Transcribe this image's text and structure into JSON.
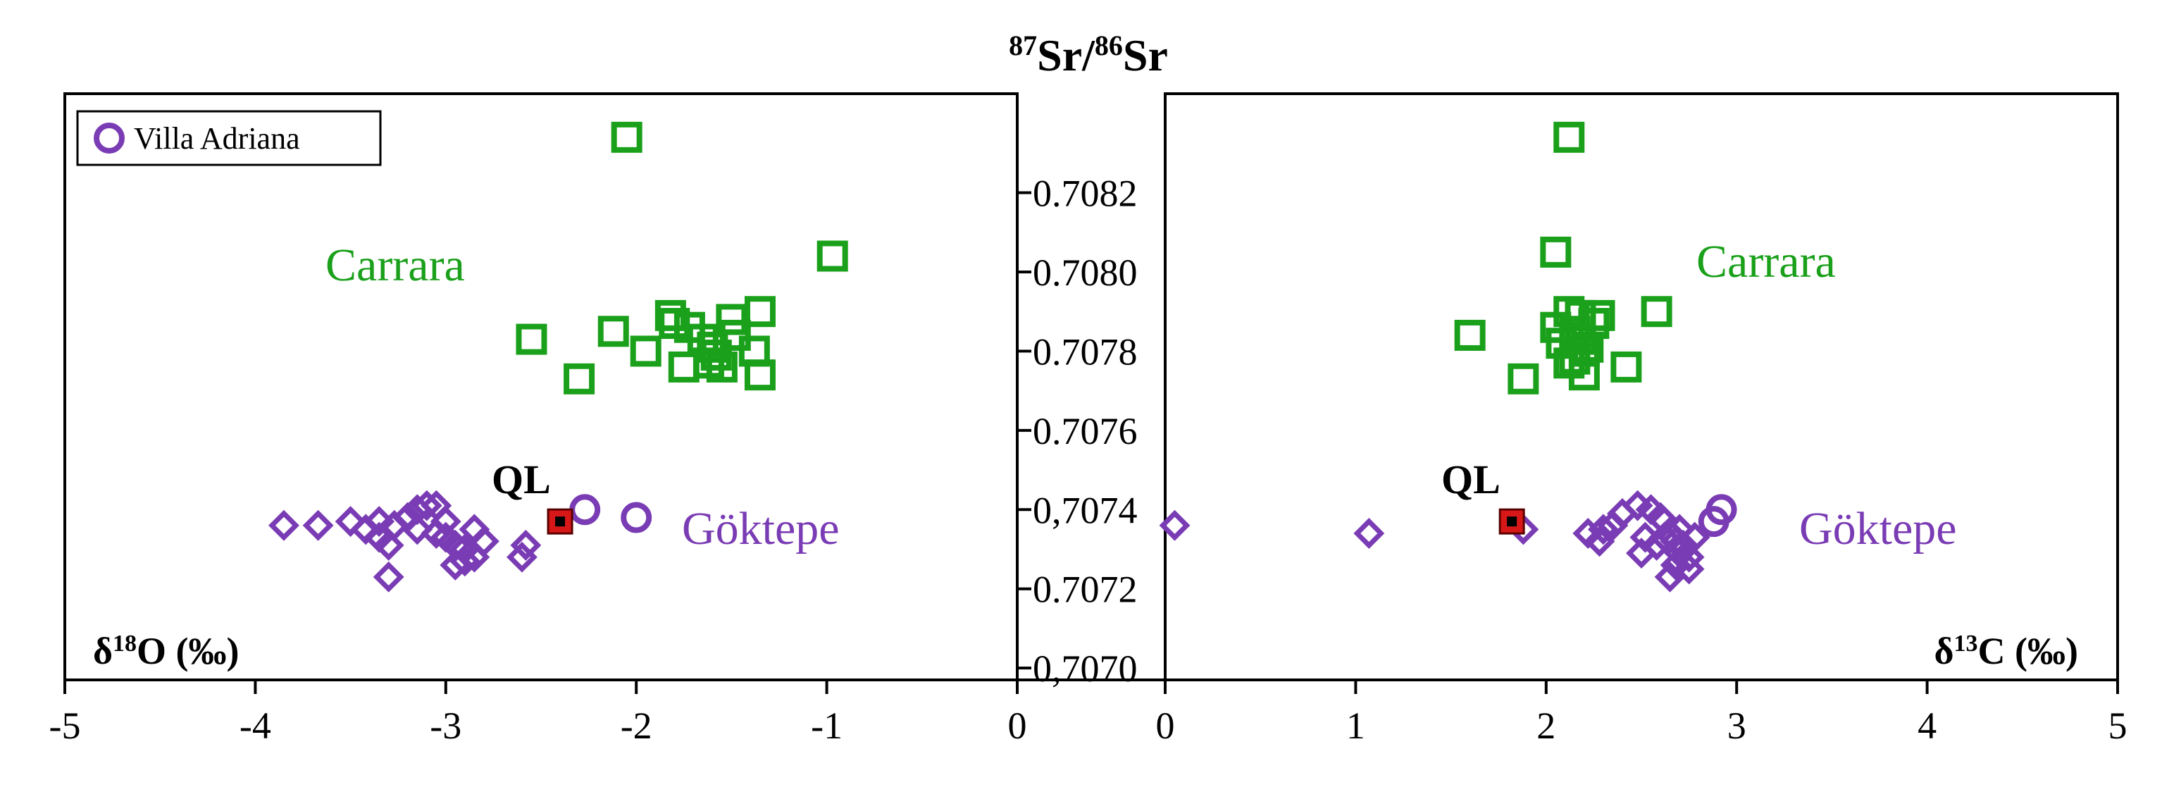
{
  "chart_data": {
    "type": "scatter",
    "title": "87Sr/86Sr",
    "title_parts": {
      "sup1": "87",
      "base1": "Sr/",
      "sup2": "86",
      "base2": "Sr"
    },
    "colors": {
      "carrara": "#1aa01a",
      "goktepe": "#7a3cb4",
      "villa_adriana": "#7a3cb4",
      "ql_fill": "#d81818",
      "ql_core": "#000000"
    },
    "y_axis": {
      "label": "87Sr/86Sr",
      "ylim": [
        0.70697,
        0.70845
      ],
      "ticks": [
        0.707,
        0.7072,
        0.7074,
        0.7076,
        0.7078,
        0.708,
        0.7082
      ],
      "tick_labels": [
        "0,7070",
        "0.7072",
        "0,7074",
        "0.7076",
        "0.7078",
        "0.7080",
        "0.7082"
      ]
    },
    "x_axis": {
      "xlim": [
        -5,
        5
      ],
      "ticks": [
        -5,
        -4,
        -3,
        -2,
        -1,
        0,
        1,
        2,
        3,
        4,
        5
      ],
      "tick_labels": [
        "-5",
        "-4",
        "-3",
        "-2",
        "-1",
        "0",
        "0",
        "1",
        "2",
        "3",
        "4",
        "5"
      ]
    },
    "panels": [
      {
        "name": "left",
        "xlabel": "δ18O (‰)",
        "xlabel_parts": {
          "base": "δ",
          "sup": "18",
          "rest": "O (‰)"
        },
        "xlim": [
          -5,
          0
        ],
        "legend": {
          "label": "Villa Adriana",
          "placement": "top-left"
        },
        "annotations": {
          "carrara": "Carrara",
          "goktepe": "Göktepe",
          "ql": "QL"
        },
        "series": [
          {
            "name": "Carrara",
            "marker": "square",
            "points": [
              [
                -2.05,
                0.70834
              ],
              [
                -0.97,
                0.70804
              ],
              [
                -2.55,
                0.70783
              ],
              [
                -2.3,
                0.70773
              ],
              [
                -2.12,
                0.70785
              ],
              [
                -1.95,
                0.7078
              ],
              [
                -1.82,
                0.70789
              ],
              [
                -1.8,
                0.70787
              ],
              [
                -1.72,
                0.70786
              ],
              [
                -1.65,
                0.70783
              ],
              [
                -1.6,
                0.70781
              ],
              [
                -1.5,
                0.70788
              ],
              [
                -1.48,
                0.70784
              ],
              [
                -1.35,
                0.7079
              ],
              [
                -1.38,
                0.7078
              ],
              [
                -1.35,
                0.70774
              ],
              [
                -1.55,
                0.70776
              ],
              [
                -1.62,
                0.70777
              ],
              [
                -1.75,
                0.70776
              ],
              [
                -1.58,
                0.70779
              ]
            ]
          },
          {
            "name": "Göktepe",
            "marker": "diamond",
            "points": [
              [
                -3.85,
                0.70736
              ],
              [
                -3.67,
                0.70736
              ],
              [
                -3.5,
                0.70737
              ],
              [
                -3.42,
                0.70735
              ],
              [
                -3.35,
                0.70733
              ],
              [
                -3.3,
                0.70731
              ],
              [
                -3.27,
                0.70736
              ],
              [
                -3.2,
                0.70738
              ],
              [
                -3.15,
                0.7074
              ],
              [
                -3.1,
                0.70741
              ],
              [
                -3.05,
                0.70741
              ],
              [
                -3.15,
                0.70735
              ],
              [
                -3.05,
                0.70734
              ],
              [
                -3.0,
                0.70733
              ],
              [
                -2.95,
                0.70731
              ],
              [
                -2.9,
                0.7073
              ],
              [
                -2.85,
                0.70728
              ],
              [
                -2.9,
                0.70727
              ],
              [
                -2.95,
                0.70726
              ],
              [
                -2.8,
                0.70732
              ],
              [
                -2.58,
                0.70731
              ],
              [
                -2.6,
                0.70728
              ],
              [
                -3.3,
                0.70723
              ],
              [
                -2.85,
                0.70735
              ],
              [
                -3.0,
                0.70737
              ],
              [
                -3.35,
                0.70737
              ]
            ]
          },
          {
            "name": "Villa Adriana",
            "marker": "circle",
            "points": [
              [
                -2.27,
                0.7074
              ],
              [
                -2.0,
                0.70738
              ]
            ]
          },
          {
            "name": "QL",
            "marker": "square-filled",
            "points": [
              [
                -2.4,
                0.70737
              ]
            ]
          }
        ]
      },
      {
        "name": "right",
        "xlabel": "δ13C (‰)",
        "xlabel_parts": {
          "base": "δ",
          "sup": "13",
          "rest": "C (‰)"
        },
        "xlim": [
          0,
          5
        ],
        "annotations": {
          "carrara": "Carrara",
          "goktepe": "Göktepe",
          "ql": "QL"
        },
        "series": [
          {
            "name": "Carrara",
            "marker": "square",
            "points": [
              [
                2.12,
                0.70834
              ],
              [
                2.05,
                0.70805
              ],
              [
                1.6,
                0.70784
              ],
              [
                1.88,
                0.70773
              ],
              [
                2.05,
                0.70786
              ],
              [
                2.12,
                0.7079
              ],
              [
                2.18,
                0.70789
              ],
              [
                2.28,
                0.70789
              ],
              [
                2.08,
                0.70782
              ],
              [
                2.12,
                0.70777
              ],
              [
                2.2,
                0.70774
              ],
              [
                2.15,
                0.70785
              ],
              [
                2.2,
                0.7078
              ],
              [
                2.25,
                0.70787
              ],
              [
                2.18,
                0.70783
              ],
              [
                2.15,
                0.70778
              ],
              [
                2.42,
                0.70776
              ],
              [
                2.58,
                0.7079
              ],
              [
                2.22,
                0.70781
              ]
            ]
          },
          {
            "name": "Göktepe",
            "marker": "diamond",
            "points": [
              [
                0.05,
                0.70736
              ],
              [
                1.07,
                0.70734
              ],
              [
                1.88,
                0.70735
              ],
              [
                2.22,
                0.70734
              ],
              [
                2.28,
                0.70732
              ],
              [
                2.3,
                0.70735
              ],
              [
                2.35,
                0.70736
              ],
              [
                2.4,
                0.70739
              ],
              [
                2.48,
                0.70741
              ],
              [
                2.55,
                0.7074
              ],
              [
                2.6,
                0.70738
              ],
              [
                2.52,
                0.70733
              ],
              [
                2.58,
                0.70731
              ],
              [
                2.62,
                0.70733
              ],
              [
                2.65,
                0.70734
              ],
              [
                2.68,
                0.70732
              ],
              [
                2.7,
                0.70729
              ],
              [
                2.72,
                0.70731
              ],
              [
                2.75,
                0.70728
              ],
              [
                2.68,
                0.70726
              ],
              [
                2.65,
                0.70723
              ],
              [
                2.75,
                0.70725
              ],
              [
                2.78,
                0.70733
              ],
              [
                2.7,
                0.70735
              ],
              [
                2.62,
                0.70737
              ],
              [
                2.5,
                0.70729
              ]
            ]
          },
          {
            "name": "Villa Adriana",
            "marker": "circle",
            "points": [
              [
                2.88,
                0.70737
              ],
              [
                2.92,
                0.7074
              ]
            ]
          },
          {
            "name": "QL",
            "marker": "square-filled",
            "points": [
              [
                1.82,
                0.70737
              ]
            ]
          }
        ]
      }
    ]
  }
}
